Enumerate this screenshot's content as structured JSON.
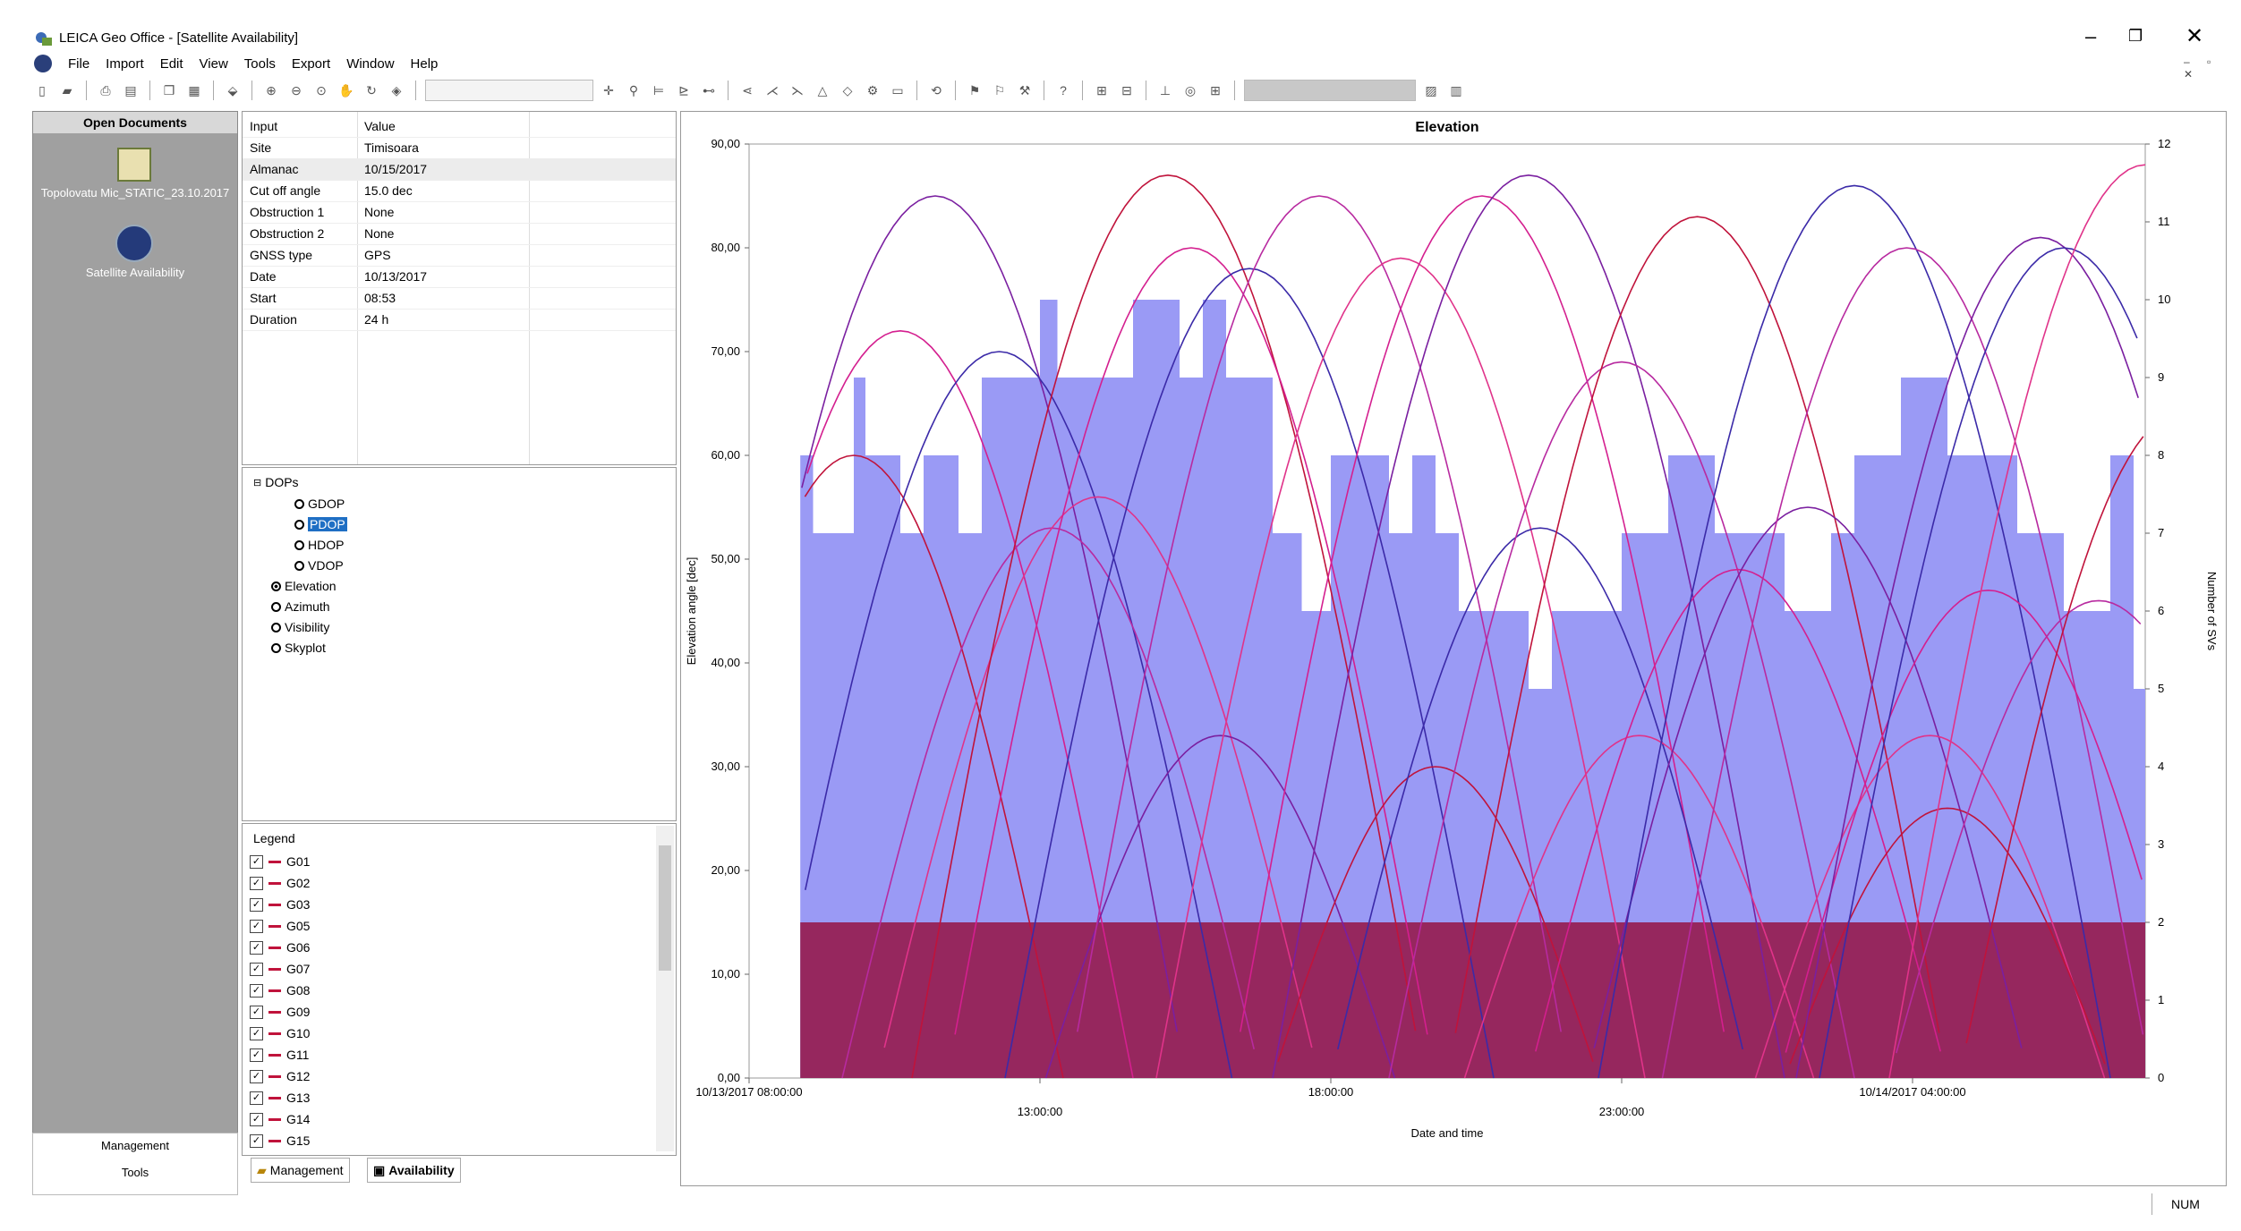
{
  "window": {
    "title": "LEICA Geo Office - [Satellite Availability]",
    "min_glyph": "–",
    "max_glyph": "❐",
    "close_glyph": "✕",
    "mdi_glyphs": "– ▫ ✕"
  },
  "menu": [
    "File",
    "Import",
    "Edit",
    "View",
    "Tools",
    "Export",
    "Window",
    "Help"
  ],
  "toolbar_icons": [
    "new-icon",
    "open-icon",
    "print-icon",
    "print-preview-icon",
    "copy-icon",
    "paste-icon",
    "import-icon",
    "zoom-in-icon",
    "zoom-out-icon",
    "zoom-window-icon",
    "pan-icon",
    "refresh-icon",
    "layers-icon"
  ],
  "left_nav": {
    "header": "Open Documents",
    "doc1_label": "Topolovatu Mic_STATIC_23.10.2017",
    "doc2_label": "Satellite Availability",
    "management": "Management",
    "tools": "Tools"
  },
  "properties": {
    "col_input": "Input",
    "col_value": "Value",
    "rows": [
      {
        "k": "Site",
        "v": "Timisoara"
      },
      {
        "k": "Almanac",
        "v": "10/15/2017"
      },
      {
        "k": "Cut off angle",
        "v": " 15.0 dec"
      },
      {
        "k": "Obstruction 1",
        "v": "None"
      },
      {
        "k": "Obstruction 2",
        "v": "None"
      },
      {
        "k": "GNSS type",
        "v": "GPS"
      },
      {
        "k": "Date",
        "v": "10/13/2017"
      },
      {
        "k": "Start",
        "v": "08:53"
      },
      {
        "k": "Duration",
        "v": "24 h"
      }
    ]
  },
  "tree": {
    "root": "DOPs",
    "items": [
      "GDOP",
      "PDOP",
      "HDOP",
      "VDOP",
      "Elevation",
      "Azimuth",
      "Visibility",
      "Skyplot"
    ],
    "selected": "PDOP",
    "checked": "Elevation"
  },
  "legend": {
    "title": "Legend",
    "items": [
      "G01",
      "G02",
      "G03",
      "G05",
      "G06",
      "G07",
      "G08",
      "G09",
      "G10",
      "G11",
      "G12",
      "G13",
      "G14",
      "G15"
    ],
    "line_color": "#c0133b"
  },
  "tabs": {
    "management": "Management",
    "availability": "Availability"
  },
  "status": {
    "num": "NUM"
  },
  "chart_data": {
    "type": "line",
    "title": "Elevation",
    "xlabel": "Date and time",
    "ylabel": "Elevation angle [dec]",
    "y2label": "Number of SVs",
    "ylim": [
      0,
      90
    ],
    "y2lim": [
      0,
      12
    ],
    "yticks": [
      "0,00",
      "10,00",
      "20,00",
      "30,00",
      "40,00",
      "50,00",
      "60,00",
      "70,00",
      "80,00",
      "90,00"
    ],
    "y2ticks": [
      "0",
      "1",
      "2",
      "3",
      "4",
      "5",
      "6",
      "7",
      "8",
      "9",
      "10",
      "11",
      "12"
    ],
    "xlim_hours": [
      8,
      32
    ],
    "xticks": [
      {
        "h": 8,
        "label": "10/13/2017 08:00:00"
      },
      {
        "h": 13,
        "label": "13:00:00"
      },
      {
        "h": 18,
        "label": "18:00:00"
      },
      {
        "h": 23,
        "label": "23:00:00"
      },
      {
        "h": 28,
        "label": "10/14/2017 04:00:00"
      }
    ],
    "data_start_h": 8.88,
    "data_end_h": 32.88,
    "cutoff_deg": 15,
    "colors": {
      "sv_fill": "#9a9af5",
      "cutoff_fill": "#96275e",
      "arc_palette": [
        "#c0133b",
        "#d41f8f",
        "#7a1fa0",
        "#3b2aa8",
        "#b82aa0",
        "#e0338a"
      ]
    },
    "sv_count": {
      "hours": [
        8.88,
        9.1,
        9.8,
        10.0,
        10.6,
        11.0,
        11.6,
        12.0,
        12.5,
        13.0,
        13.3,
        13.6,
        14.0,
        14.6,
        15.0,
        15.4,
        15.8,
        16.2,
        16.6,
        17.0,
        17.5,
        18.0,
        18.6,
        19.0,
        19.4,
        19.8,
        20.2,
        20.6,
        21.0,
        21.4,
        21.8,
        22.2,
        22.6,
        23.0,
        23.4,
        23.8,
        24.2,
        24.6,
        25.0,
        25.4,
        25.8,
        26.2,
        26.6,
        27.0,
        27.4,
        27.8,
        28.2,
        28.6,
        29.0,
        29.4,
        29.8,
        30.2,
        30.6,
        31.0,
        31.4,
        31.8,
        32.2,
        32.6
      ],
      "values": [
        8,
        7,
        9,
        8,
        7,
        8,
        7,
        9,
        9,
        10,
        9,
        9,
        9,
        10,
        10,
        9,
        10,
        9,
        9,
        7,
        6,
        8,
        8,
        7,
        8,
        7,
        6,
        6,
        6,
        5,
        6,
        6,
        6,
        7,
        7,
        8,
        8,
        7,
        7,
        7,
        6,
        6,
        7,
        8,
        8,
        9,
        9,
        8,
        8,
        8,
        7,
        7,
        6,
        6,
        8,
        5,
        7,
        8
      ]
    },
    "series": [
      {
        "name": "G01",
        "peak_h": 9.8,
        "peak_deg": 60,
        "half": 3.6
      },
      {
        "name": "G02",
        "peak_h": 10.6,
        "peak_deg": 72,
        "half": 4.0
      },
      {
        "name": "G03",
        "peak_h": 11.2,
        "peak_deg": 85,
        "half": 4.3
      },
      {
        "name": "G05",
        "peak_h": 12.3,
        "peak_deg": 70,
        "half": 4.0
      },
      {
        "name": "G06",
        "peak_h": 13.2,
        "peak_deg": 53,
        "half": 3.6
      },
      {
        "name": "G07",
        "peak_h": 14.0,
        "peak_deg": 56,
        "half": 3.8
      },
      {
        "name": "G08",
        "peak_h": 15.2,
        "peak_deg": 87,
        "half": 4.4
      },
      {
        "name": "G09",
        "peak_h": 15.6,
        "peak_deg": 80,
        "half": 4.2
      },
      {
        "name": "G10",
        "peak_h": 16.1,
        "peak_deg": 33,
        "half": 3.0
      },
      {
        "name": "G11",
        "peak_h": 16.6,
        "peak_deg": 78,
        "half": 4.2
      },
      {
        "name": "G12",
        "peak_h": 17.8,
        "peak_deg": 85,
        "half": 4.3
      },
      {
        "name": "G13",
        "peak_h": 19.2,
        "peak_deg": 79,
        "half": 4.2
      },
      {
        "name": "G14",
        "peak_h": 19.8,
        "peak_deg": 30,
        "half": 2.8
      },
      {
        "name": "G15",
        "peak_h": 20.6,
        "peak_deg": 85,
        "half": 4.3
      },
      {
        "name": "",
        "peak_h": 21.4,
        "peak_deg": 87,
        "half": 4.4
      },
      {
        "name": "",
        "peak_h": 21.6,
        "peak_deg": 53,
        "half": 3.6
      },
      {
        "name": "",
        "peak_h": 23.0,
        "peak_deg": 69,
        "half": 4.0
      },
      {
        "name": "",
        "peak_h": 23.3,
        "peak_deg": 33,
        "half": 3.0
      },
      {
        "name": "",
        "peak_h": 24.3,
        "peak_deg": 83,
        "half": 4.3
      },
      {
        "name": "",
        "peak_h": 25.0,
        "peak_deg": 49,
        "half": 3.6
      },
      {
        "name": "",
        "peak_h": 26.2,
        "peak_deg": 55,
        "half": 3.8
      },
      {
        "name": "",
        "peak_h": 27.0,
        "peak_deg": 86,
        "half": 4.4
      },
      {
        "name": "",
        "peak_h": 27.9,
        "peak_deg": 80,
        "half": 4.2
      },
      {
        "name": "",
        "peak_h": 28.3,
        "peak_deg": 33,
        "half": 3.0
      },
      {
        "name": "",
        "peak_h": 28.6,
        "peak_deg": 26,
        "half": 2.8
      },
      {
        "name": "",
        "peak_h": 29.3,
        "peak_deg": 47,
        "half": 3.6
      },
      {
        "name": "",
        "peak_h": 30.2,
        "peak_deg": 81,
        "half": 4.2
      },
      {
        "name": "",
        "peak_h": 30.6,
        "peak_deg": 80,
        "half": 4.2
      },
      {
        "name": "",
        "peak_h": 31.2,
        "peak_deg": 46,
        "half": 3.6
      },
      {
        "name": "",
        "peak_h": 32.0,
        "peak_deg": 88,
        "half": 4.4
      },
      {
        "name": "",
        "peak_h": 32.6,
        "peak_deg": 64,
        "half": 3.8
      }
    ]
  }
}
